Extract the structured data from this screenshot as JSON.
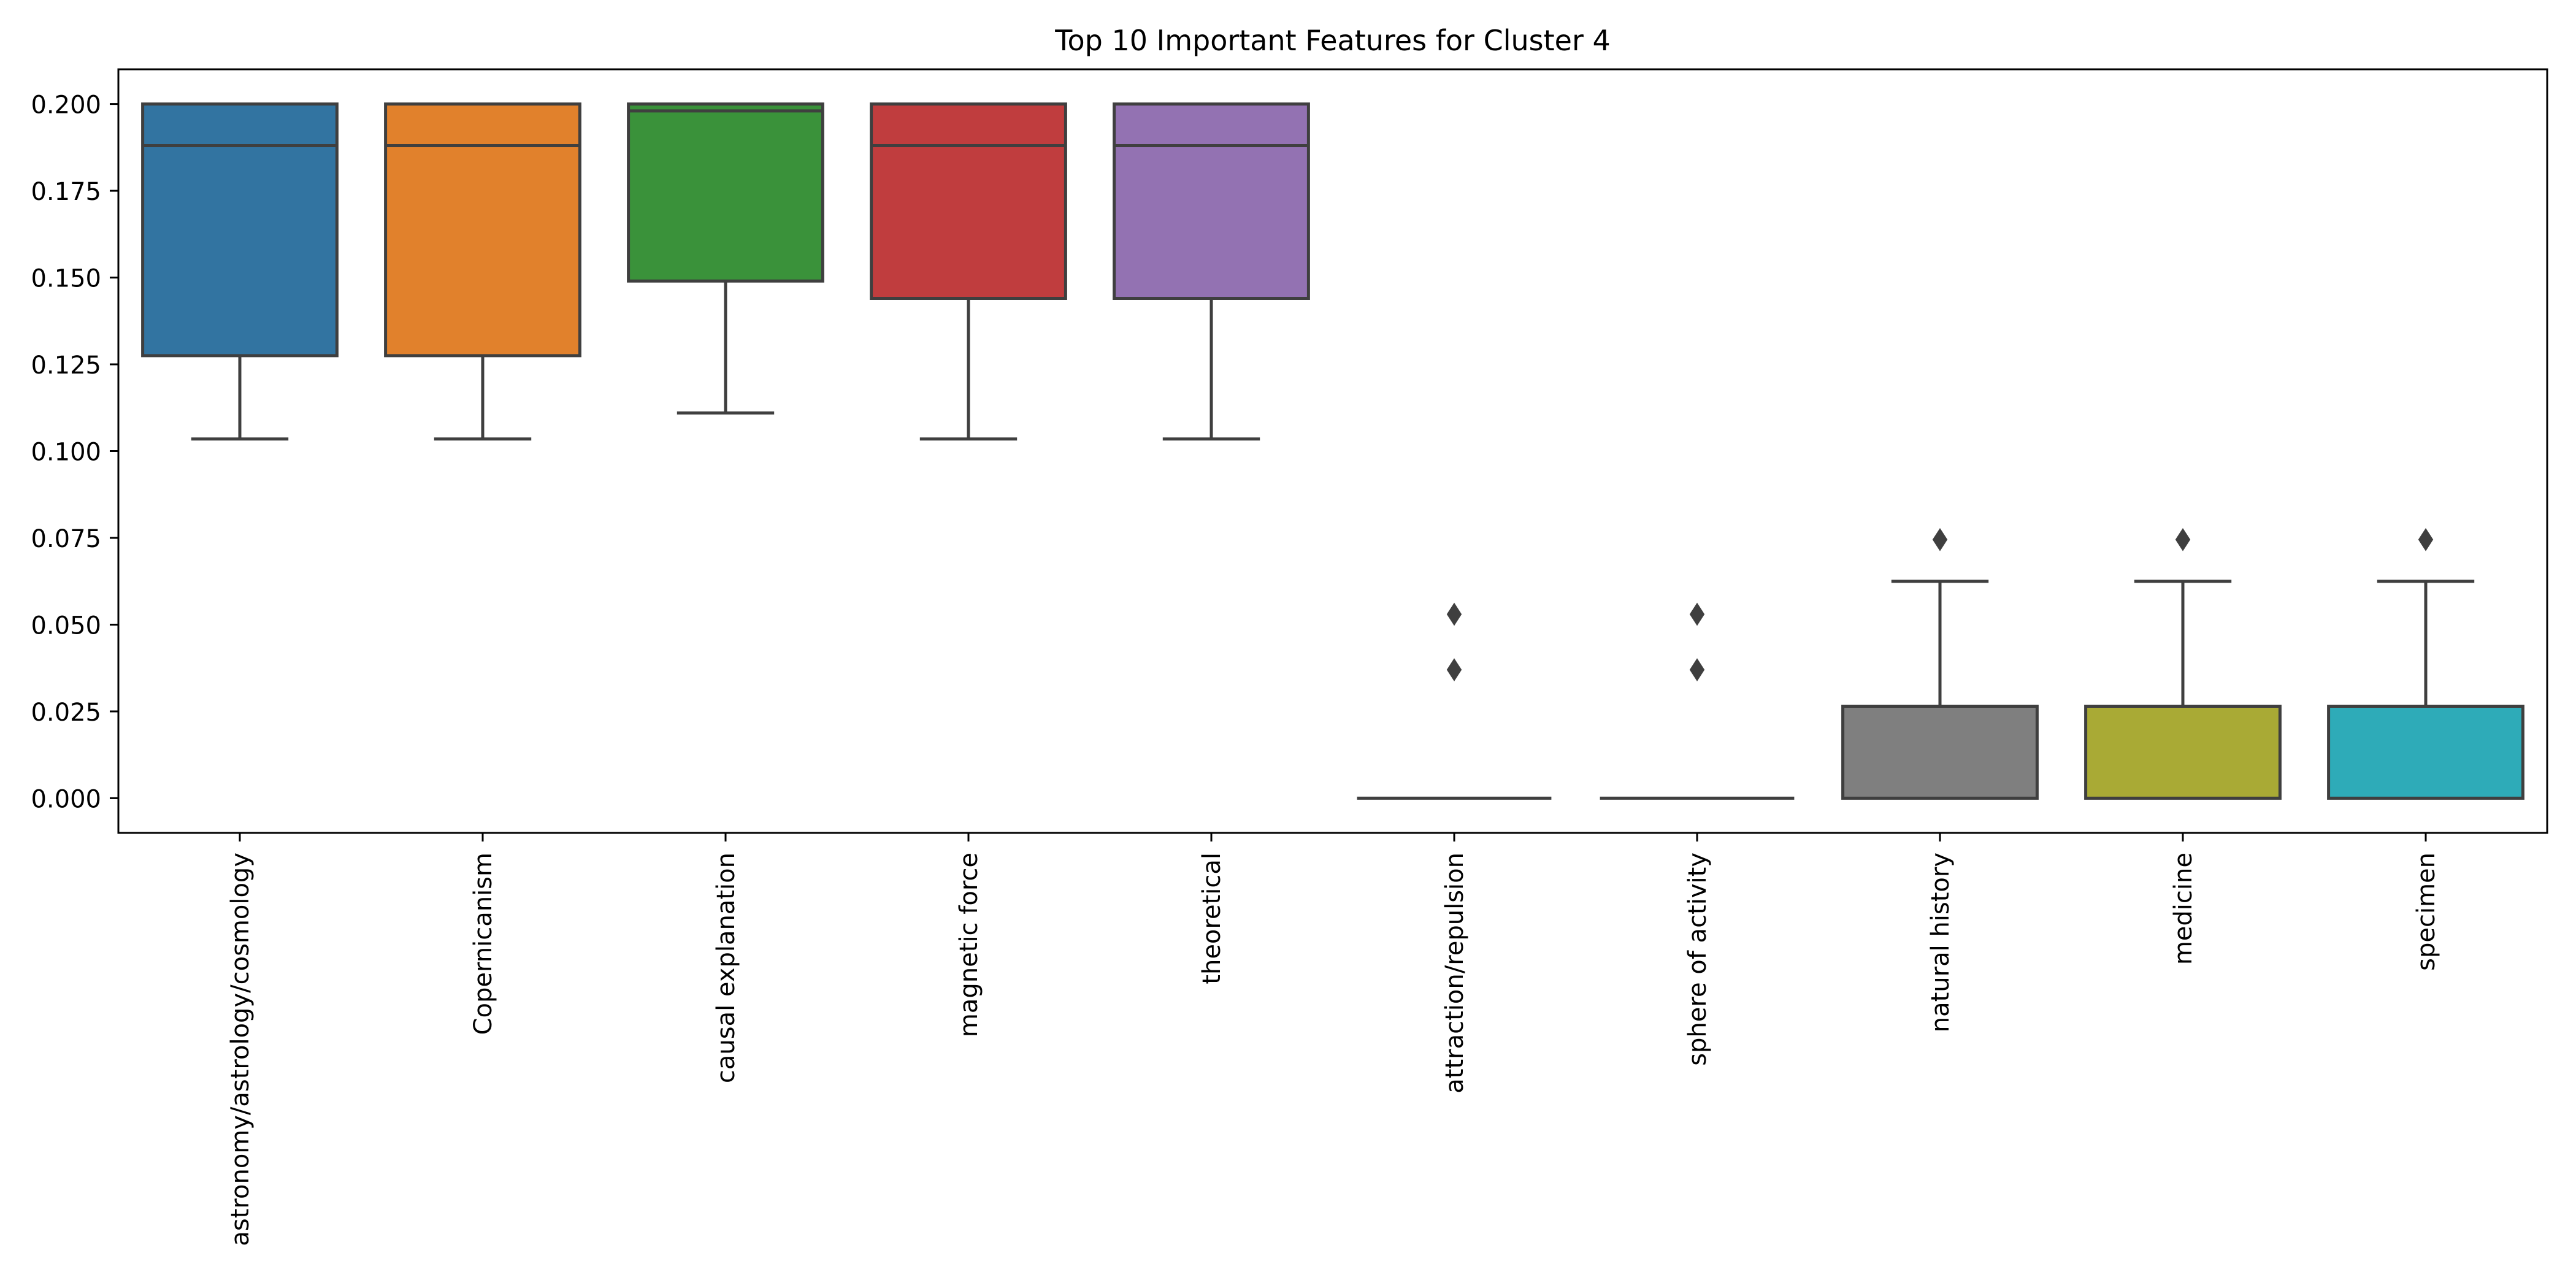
{
  "chart_data": {
    "type": "box",
    "title": "Top 10 Important Features for Cluster 4",
    "xlabel": "",
    "ylabel": "",
    "ylim": [
      -0.01,
      0.21
    ],
    "yticks": [
      0.0,
      0.025,
      0.05,
      0.075,
      0.1,
      0.125,
      0.15,
      0.175,
      0.2
    ],
    "ytick_labels": [
      "0.000",
      "0.025",
      "0.050",
      "0.075",
      "0.100",
      "0.125",
      "0.150",
      "0.175",
      "0.200"
    ],
    "grid": false,
    "legend": "none",
    "categories": [
      "astronomy/astrology/cosmology",
      "Copernicanism",
      "causal explanation",
      "magnetic force",
      "theoretical",
      "attraction/repulsion",
      "sphere of activity",
      "natural history",
      "medicine",
      "specimen"
    ],
    "boxes": [
      {
        "color": "#3274a1",
        "whisker_low": 0.1035,
        "q1": 0.1275,
        "median": 0.188,
        "q3": 0.2,
        "whisker_high": 0.2,
        "outliers": []
      },
      {
        "color": "#e1812c",
        "whisker_low": 0.1035,
        "q1": 0.1275,
        "median": 0.188,
        "q3": 0.2,
        "whisker_high": 0.2,
        "outliers": []
      },
      {
        "color": "#3a923a",
        "whisker_low": 0.111,
        "q1": 0.149,
        "median": 0.198,
        "q3": 0.2,
        "whisker_high": 0.2,
        "outliers": []
      },
      {
        "color": "#c03d3e",
        "whisker_low": 0.1035,
        "q1": 0.144,
        "median": 0.188,
        "q3": 0.2,
        "whisker_high": 0.2,
        "outliers": []
      },
      {
        "color": "#9372b2",
        "whisker_low": 0.1035,
        "q1": 0.144,
        "median": 0.188,
        "q3": 0.2,
        "whisker_high": 0.2,
        "outliers": []
      },
      {
        "color": "#845b53",
        "whisker_low": 0.0,
        "q1": 0.0,
        "median": 0.0,
        "q3": 0.0,
        "whisker_high": 0.0,
        "outliers": [
          0.037,
          0.053
        ]
      },
      {
        "color": "#d684bd",
        "whisker_low": 0.0,
        "q1": 0.0,
        "median": 0.0,
        "q3": 0.0,
        "whisker_high": 0.0,
        "outliers": [
          0.037,
          0.053
        ]
      },
      {
        "color": "#7f7f7f",
        "whisker_low": 0.0,
        "q1": 0.0,
        "median": 0.0265,
        "q3": 0.0265,
        "whisker_high": 0.0625,
        "outliers": [
          0.0745
        ]
      },
      {
        "color": "#a9aa35",
        "whisker_low": 0.0,
        "q1": 0.0,
        "median": 0.0265,
        "q3": 0.0265,
        "whisker_high": 0.0625,
        "outliers": [
          0.0745
        ]
      },
      {
        "color": "#2eabb8",
        "whisker_low": 0.0,
        "q1": 0.0,
        "median": 0.0265,
        "q3": 0.0265,
        "whisker_high": 0.0625,
        "outliers": [
          0.0745
        ]
      }
    ]
  }
}
